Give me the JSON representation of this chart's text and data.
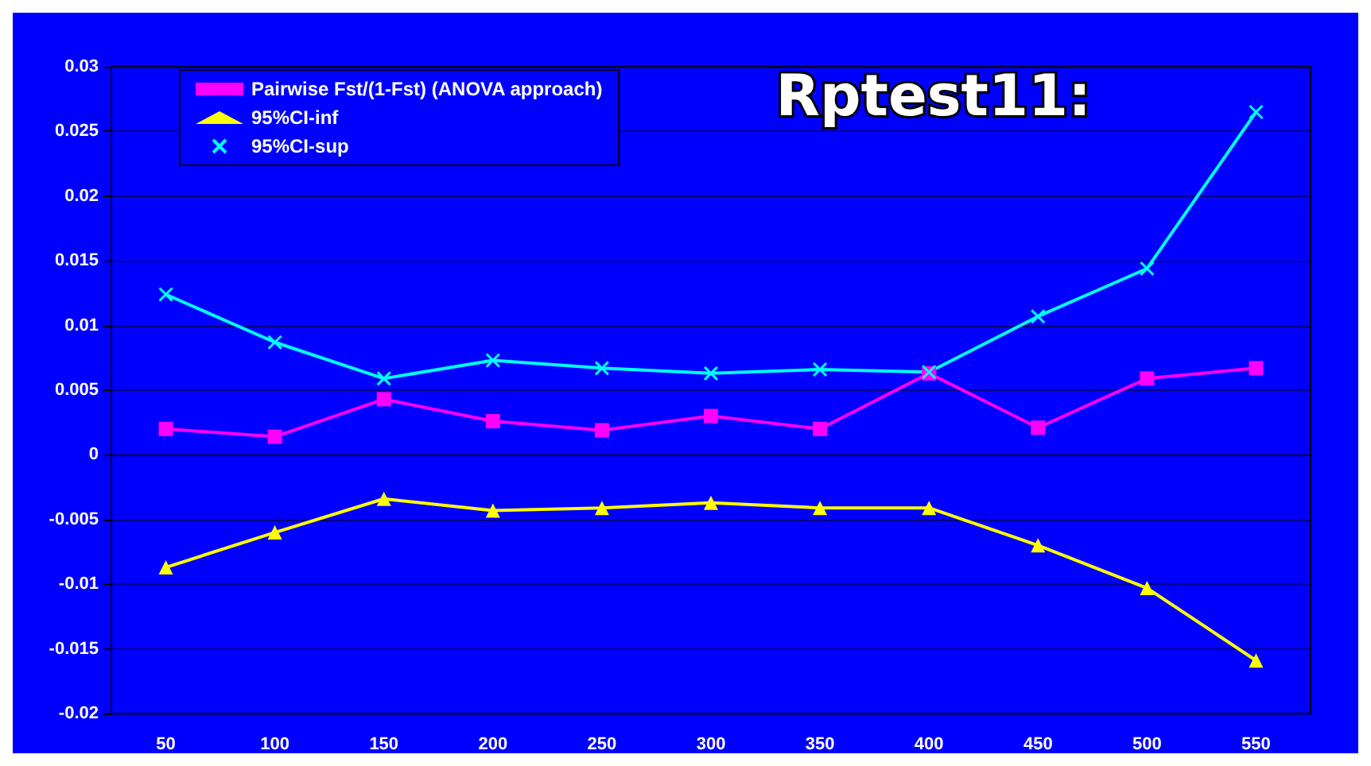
{
  "chart_data": {
    "type": "line",
    "title": "Rptest11:",
    "categories": [
      "50",
      "100",
      "150",
      "200",
      "250",
      "300",
      "350",
      "400",
      "450",
      "500",
      "550"
    ],
    "series": [
      {
        "name": "Pairwise Fst/(1-Fst) (ANOVA approach)",
        "color": "#ff00ff",
        "marker": "square",
        "values": [
          0.002,
          0.0014,
          0.0043,
          0.0026,
          0.0019,
          0.003,
          0.002,
          0.0063,
          0.0021,
          0.0059,
          0.0067
        ]
      },
      {
        "name": "95%CI-inf",
        "color": "#ffff00",
        "marker": "triangle",
        "values": [
          -0.0087,
          -0.006,
          -0.0034,
          -0.0043,
          -0.0041,
          -0.0037,
          -0.0041,
          -0.0041,
          -0.007,
          -0.0103,
          -0.0159
        ]
      },
      {
        "name": "95%CI-sup",
        "color": "#00ffff",
        "marker": "cross",
        "values": [
          0.0124,
          0.0087,
          0.0059,
          0.0073,
          0.0067,
          0.0063,
          0.0066,
          0.0064,
          0.0107,
          0.0144,
          0.0265
        ]
      }
    ],
    "ylim": [
      -0.02,
      0.03
    ],
    "yticks": [
      -0.02,
      -0.015,
      -0.01,
      -0.005,
      0,
      0.005,
      0.01,
      0.015,
      0.02,
      0.025,
      0.03
    ],
    "grid": "y",
    "legend": "top left"
  }
}
